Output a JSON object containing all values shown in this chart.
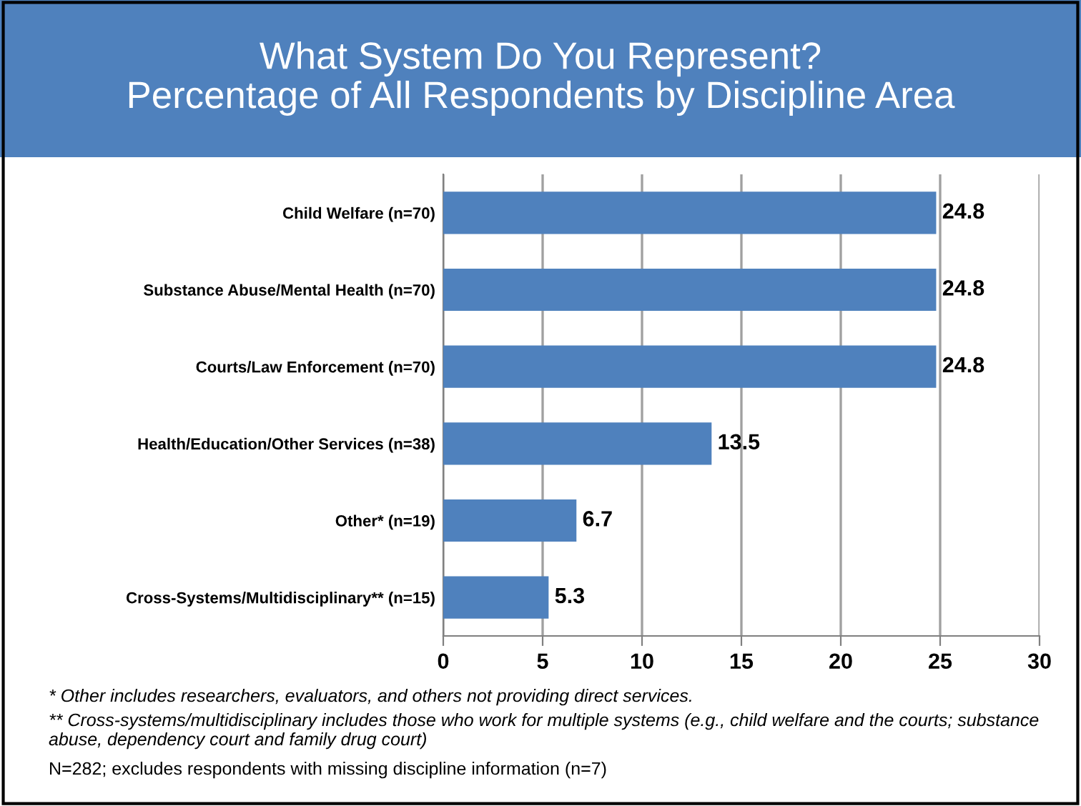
{
  "chart_data": {
    "type": "bar",
    "orientation": "horizontal",
    "title": "What System Do You Represent?\nPercentage of All Respondents by Discipline Area",
    "categories": [
      "Child Welfare (n=70)",
      "Substance Abuse/Mental Health (n=70)",
      "Courts/Law Enforcement (n=70)",
      "Health/Education/Other Services (n=38)",
      "Other* (n=19)",
      "Cross-Systems/Multidisciplinary** (n=15)"
    ],
    "values": [
      24.8,
      24.8,
      24.8,
      13.5,
      6.7,
      5.3
    ],
    "color": "#4f81bd",
    "data_labels": true,
    "xlim": [
      0,
      30
    ],
    "xticks": [
      0,
      5,
      10,
      15,
      20,
      25,
      30
    ],
    "grid": "x",
    "annotations": [
      "* Other includes researchers, evaluators, and others not providing direct services.",
      "** Cross-systems/multidisciplinary includes those who work for multiple systems (e.g., child welfare and the courts; substance abuse, dependency court and family drug court)",
      "N=282; excludes respondents with missing discipline information (n=7)"
    ]
  }
}
